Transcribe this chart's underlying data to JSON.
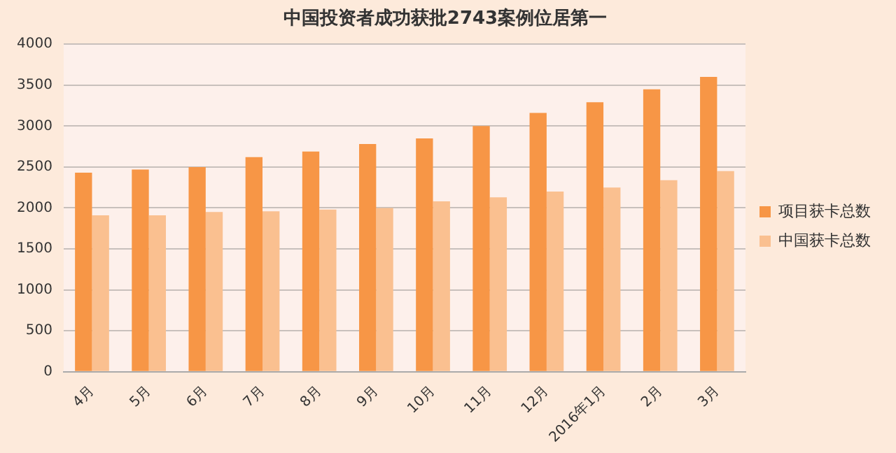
{
  "chart_data": {
    "type": "bar",
    "title": "中国投资者成功获批2743案例位居第一",
    "categories": [
      "4月",
      "5月",
      "6月",
      "7月",
      "8月",
      "9月",
      "10月",
      "11月",
      "12月",
      "2016年1月",
      "2月",
      "3月"
    ],
    "series": [
      {
        "name": "项目获卡总数",
        "color": "#f79646",
        "values": [
          2430,
          2470,
          2500,
          2620,
          2690,
          2780,
          2850,
          3000,
          3160,
          3290,
          3450,
          3600
        ]
      },
      {
        "name": "中国获卡总数",
        "color": "#fac090",
        "values": [
          1910,
          1910,
          1950,
          1960,
          1980,
          2000,
          2080,
          2130,
          2200,
          2250,
          2340,
          2450
        ]
      }
    ],
    "ylim": [
      0,
      4000
    ],
    "yticks": [
      0,
      500,
      1000,
      1500,
      2000,
      2500,
      3000,
      3500,
      4000
    ],
    "grid": "y",
    "legend": "right"
  }
}
